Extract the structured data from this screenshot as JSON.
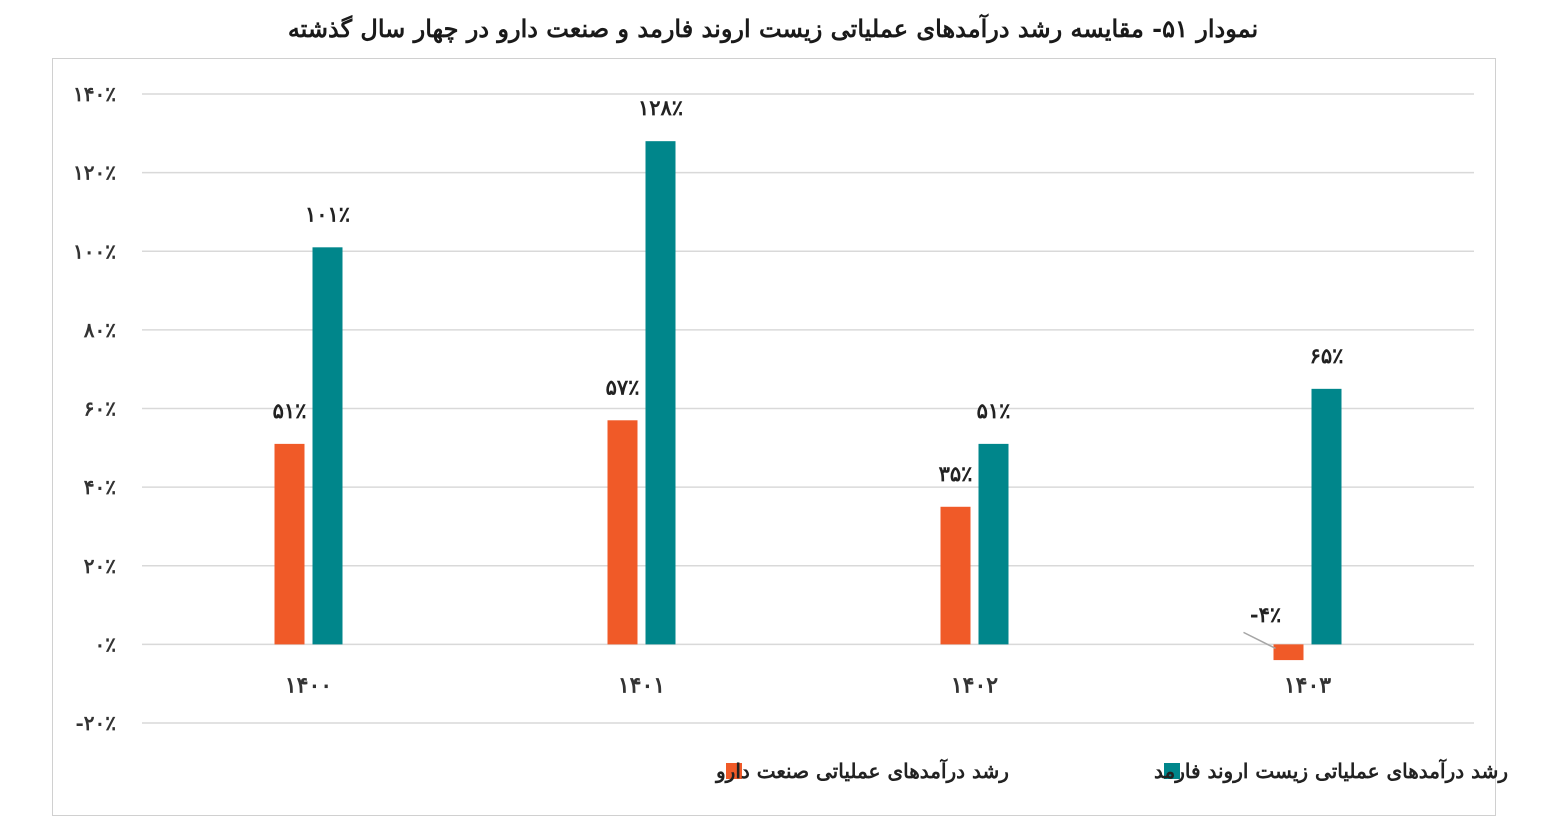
{
  "title": "نمودار ۵۱- مقایسه رشد درآمدهای عملیاتی زیست اروند فارمد و صنعت دارو در چهار سال گذشته",
  "chart_data": {
    "type": "bar",
    "categories": [
      "۱۴۰۰",
      "۱۴۰۱",
      "۱۴۰۲",
      "۱۴۰۳"
    ],
    "series": [
      {
        "name": "رشد درآمدهای عملیاتی صنعت دارو",
        "color": "#F05A28",
        "values": [
          51,
          57,
          35,
          -4
        ],
        "labels": [
          "۵۱٪",
          "۵۷٪",
          "۳۵٪",
          "-۴٪"
        ]
      },
      {
        "name": "رشد درآمدهای عملیاتی زیست اروند فارمد",
        "color": "#00868B",
        "values": [
          101,
          128,
          51,
          65
        ],
        "labels": [
          "۱۰۱٪",
          "۱۲۸٪",
          "۵۱٪",
          "۶۵٪"
        ]
      }
    ],
    "yticks": [
      140,
      120,
      100,
      80,
      60,
      40,
      20,
      0,
      -20
    ],
    "ytick_labels": [
      "۱۴۰٪",
      "۱۲۰٪",
      "۱۰۰٪",
      "۸۰٪",
      "۶۰٪",
      "۴۰٪",
      "۲۰٪",
      "۰٪",
      "-۲۰٪"
    ],
    "ylim": [
      -20,
      140
    ],
    "grid": true,
    "legend_position": "bottom",
    "xlabel": "",
    "ylabel": ""
  }
}
